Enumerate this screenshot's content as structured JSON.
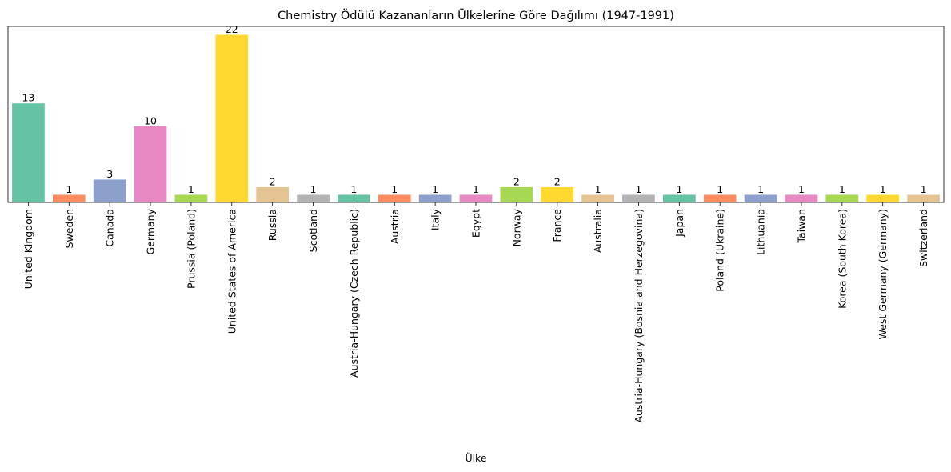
{
  "chart_data": {
    "type": "bar",
    "title": "Chemistry Ödülü Kazananların Ülkelerine Göre Dağılımı (1947-1991)",
    "xlabel": "Ülke",
    "ylabel": "",
    "ylim": [
      0,
      23.1
    ],
    "grid": false,
    "categories": [
      "United Kingdom",
      "Sweden",
      "Canada",
      "Germany",
      "Prussia (Poland)",
      "United States of America",
      "Russia",
      "Scotland",
      "Austria-Hungary (Czech Republic)",
      "Austria",
      "Italy",
      "Egypt",
      "Norway",
      "France",
      "Australia",
      "Austria-Hungary (Bosnia and Herzegovina)",
      "Japan",
      "Poland (Ukraine)",
      "Lithuania",
      "Taiwan",
      "Korea (South Korea)",
      "West Germany (Germany)",
      "Switzerland"
    ],
    "values": [
      13,
      1,
      3,
      10,
      1,
      22,
      2,
      1,
      1,
      1,
      1,
      1,
      2,
      2,
      1,
      1,
      1,
      1,
      1,
      1,
      1,
      1,
      1
    ],
    "colors": [
      "#66c2a5",
      "#fc8d62",
      "#8da0cb",
      "#e78ac3",
      "#a6d854",
      "#ffd92f",
      "#e5c494",
      "#b3b3b3",
      "#66c2a5",
      "#fc8d62",
      "#8da0cb",
      "#e78ac3",
      "#a6d854",
      "#ffd92f",
      "#e5c494",
      "#b3b3b3",
      "#66c2a5",
      "#fc8d62",
      "#8da0cb",
      "#e78ac3",
      "#a6d854",
      "#ffd92f",
      "#e5c494"
    ]
  }
}
